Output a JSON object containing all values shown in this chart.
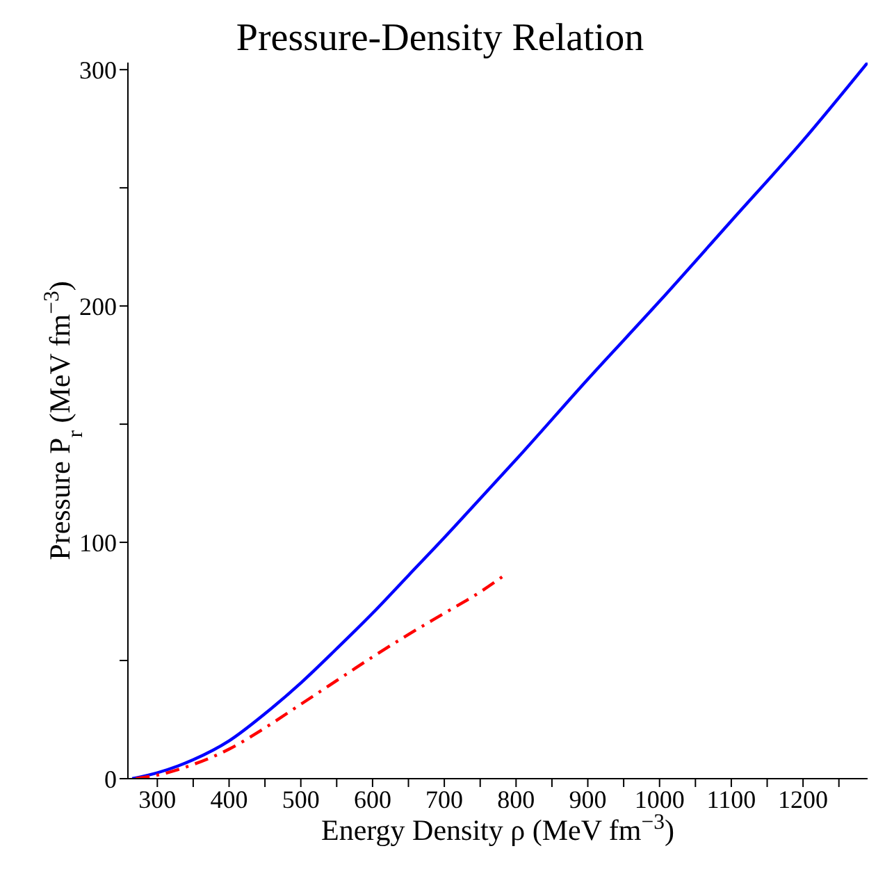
{
  "chart_data": {
    "type": "line",
    "title": "Pressure-Density Relation",
    "xlabel": "Energy Density ρ (MeV fm$^{−3}$)",
    "ylabel": "Pressure P$_{r}$ (MeV fm$^{−3}$)",
    "xlim": [
      259,
      1290
    ],
    "ylim": [
      0,
      303
    ],
    "xticks": [
      300,
      {
        "value": 350,
        "label": null
      },
      400,
      {
        "value": 450,
        "label": null
      },
      500,
      {
        "value": 550,
        "label": null
      },
      600,
      {
        "value": 650,
        "label": null
      },
      700,
      {
        "value": 750,
        "label": null
      },
      800,
      {
        "value": 850,
        "label": null
      },
      900,
      {
        "value": 950,
        "label": null
      },
      1000,
      {
        "value": 1050,
        "label": null
      },
      1100,
      {
        "value": 1150,
        "label": null
      },
      1200,
      {
        "value": 1250,
        "label": null
      }
    ],
    "yticks": [
      0,
      {
        "value": 50,
        "label": null
      },
      100,
      {
        "value": 150,
        "label": null
      },
      200,
      {
        "value": 250,
        "label": null
      },
      300
    ],
    "marker": "none",
    "series": [
      {
        "color": "#0000ff",
        "line_style": "solid",
        "x": [
          265,
          300,
          350,
          400,
          450,
          500,
          550,
          600,
          650,
          700,
          750,
          800,
          900,
          1000,
          1100,
          1200,
          1290
        ],
        "values": [
          0,
          2.5,
          8,
          16,
          27.5,
          40.5,
          55,
          70,
          86,
          102,
          118.5,
          135,
          169,
          202,
          236,
          270,
          303
        ]
      },
      {
        "color": "#ff0000",
        "line_style": "dashed",
        "x": [
          270,
          300,
          350,
          400,
          450,
          500,
          550,
          600,
          650,
          700,
          750,
          788
        ],
        "values": [
          0,
          1.5,
          6,
          12.5,
          21.5,
          31.5,
          41.5,
          51.5,
          61,
          70,
          79,
          87
        ]
      }
    ]
  }
}
